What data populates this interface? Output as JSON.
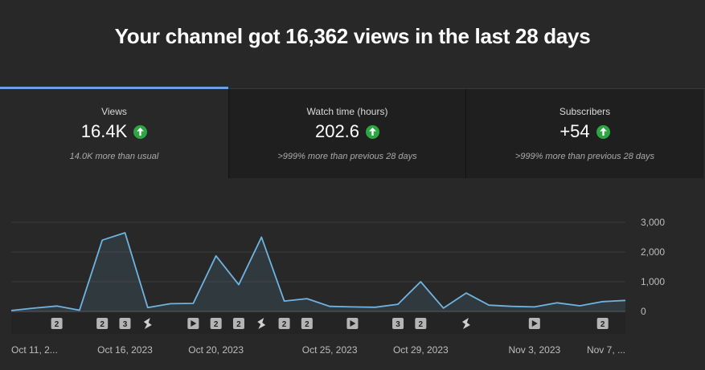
{
  "headline": "Your channel got 16,362 views in the last 28 days",
  "tabs": [
    {
      "label": "Views",
      "value": "16.4K",
      "sub": "14.0K more than usual",
      "trend_icon": "arrow-up-icon",
      "active": true
    },
    {
      "label": "Watch time (hours)",
      "value": "202.6",
      "sub": ">999% more than previous 28 days",
      "trend_icon": "arrow-up-icon",
      "active": false
    },
    {
      "label": "Subscribers",
      "value": "+54",
      "sub": ">999% more than previous 28 days",
      "trend_icon": "arrow-up-icon",
      "active": false
    }
  ],
  "colors": {
    "accent_line": "#6fb3e0",
    "positive": "#2ba640",
    "tab_indicator": "#6f9ee8"
  },
  "chart_data": {
    "type": "line",
    "ylim": [
      0,
      3000
    ],
    "y_ticks": [
      "3,000",
      "2,000",
      "1,000",
      "0"
    ],
    "y_tick_values": [
      3000,
      2000,
      1000,
      0
    ],
    "x": [
      "Oct 11",
      "Oct 12",
      "Oct 13",
      "Oct 14",
      "Oct 15",
      "Oct 16",
      "Oct 17",
      "Oct 18",
      "Oct 19",
      "Oct 20",
      "Oct 21",
      "Oct 22",
      "Oct 23",
      "Oct 24",
      "Oct 25",
      "Oct 26",
      "Oct 27",
      "Oct 28",
      "Oct 29",
      "Oct 30",
      "Oct 31",
      "Nov 1",
      "Nov 2",
      "Nov 3",
      "Nov 4",
      "Nov 5",
      "Nov 6",
      "Nov 7"
    ],
    "values": [
      30,
      110,
      180,
      40,
      2400,
      2650,
      130,
      260,
      270,
      1870,
      900,
      2500,
      350,
      430,
      170,
      150,
      140,
      240,
      1000,
      110,
      620,
      210,
      170,
      150,
      290,
      190,
      330,
      370
    ],
    "x_tick_labels": [
      "Oct 11, 2...",
      "Oct 16, 2023",
      "Oct 20, 2023",
      "Oct 25, 2023",
      "Oct 29, 2023",
      "Nov 3, 2023",
      "Nov 7, ..."
    ],
    "x_tick_index": [
      0,
      5,
      9,
      14,
      18,
      23,
      27
    ],
    "markers": [
      {
        "day": 2,
        "type": "count",
        "text": "2"
      },
      {
        "day": 4,
        "type": "count",
        "text": "2"
      },
      {
        "day": 5,
        "type": "count",
        "text": "3"
      },
      {
        "day": 6,
        "type": "shorts",
        "text": ""
      },
      {
        "day": 8,
        "type": "video",
        "text": ""
      },
      {
        "day": 9,
        "type": "count",
        "text": "2"
      },
      {
        "day": 10,
        "type": "count",
        "text": "2"
      },
      {
        "day": 11,
        "type": "shorts",
        "text": ""
      },
      {
        "day": 12,
        "type": "count",
        "text": "2"
      },
      {
        "day": 13,
        "type": "count",
        "text": "2"
      },
      {
        "day": 15,
        "type": "video",
        "text": ""
      },
      {
        "day": 17,
        "type": "count",
        "text": "3"
      },
      {
        "day": 18,
        "type": "count",
        "text": "2"
      },
      {
        "day": 20,
        "type": "shorts",
        "text": ""
      },
      {
        "day": 23,
        "type": "video",
        "text": ""
      },
      {
        "day": 26,
        "type": "count",
        "text": "2"
      }
    ]
  }
}
